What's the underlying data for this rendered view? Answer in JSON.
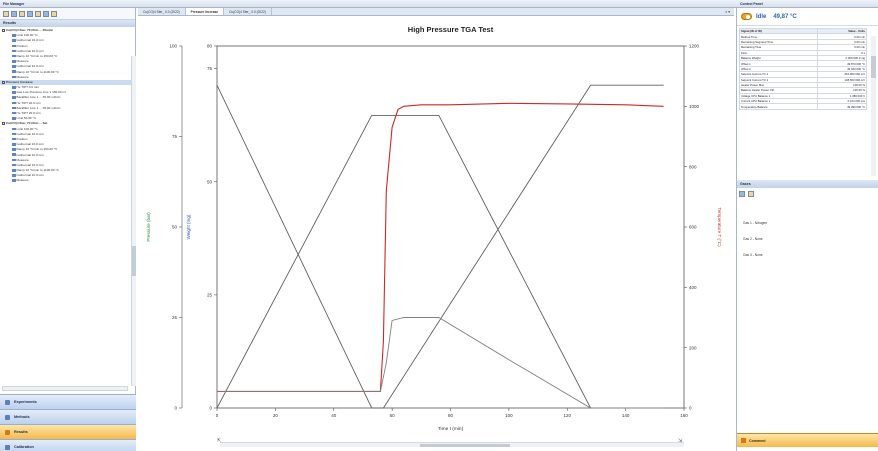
{
  "left_pane": {
    "title": "File Manager",
    "results_label": "Results",
    "tree": [
      {
        "label": "Cu(CO)4 Ster. 70 Ohm ... 35mmc",
        "group": true
      },
      {
        "label": "Limit 100.00 °C",
        "group": false
      },
      {
        "label": "Isothermal 10.0 min",
        "group": false
      },
      {
        "label": "Position",
        "group": false
      },
      {
        "label": "Isothermal 10.0 min",
        "group": false
      },
      {
        "label": "Ramp 10 °C/min to 150.00 °C",
        "group": false
      },
      {
        "label": "Measure",
        "group": false
      },
      {
        "label": "Isothermal 10.0 min",
        "group": false
      },
      {
        "label": "Ramp 10 °C/min to 1100.00 °C",
        "group": false
      },
      {
        "label": "Measure",
        "group": false
      },
      {
        "label": "Pressure Increase",
        "group": true,
        "selected": true
      },
      {
        "label": "He TIPT 0.0 min",
        "group": false
      },
      {
        "label": "Gas Low Pressure Line 1 150.00 ml",
        "group": false
      },
      {
        "label": "Backfiller Line 1 ... 35.00 ml/min",
        "group": false
      },
      {
        "label": "He TIPT 20.0 min",
        "group": false
      },
      {
        "label": "Backfiller Line 1 ... 35.00 ml/min",
        "group": false
      },
      {
        "label": "He TIPT 20.0 min",
        "group": false
      },
      {
        "label": "Limit 50.00 °C",
        "group": false
      },
      {
        "label": "Cu(CO)4 Ster. 70 Ohm ... Set",
        "group": true
      },
      {
        "label": "Limit 100.00 °C",
        "group": false
      },
      {
        "label": "Isothermal 10.0 min",
        "group": false
      },
      {
        "label": "Position",
        "group": false
      },
      {
        "label": "Isothermal 10.0 min",
        "group": false
      },
      {
        "label": "Ramp 10 °C/min to 150.00 °C",
        "group": false
      },
      {
        "label": "Isothermal 10.0 min",
        "group": false
      },
      {
        "label": "Measure",
        "group": false
      },
      {
        "label": "Isothermal 10.0 min",
        "group": false
      },
      {
        "label": "Ramp 10 °C/min to 1100.00 °C",
        "group": false
      },
      {
        "label": "Isothermal 10.0 min",
        "group": false
      },
      {
        "label": "Measure",
        "group": false
      }
    ],
    "nav_buttons": [
      {
        "label": "Experiments",
        "active": false
      },
      {
        "label": "Methods",
        "active": false
      },
      {
        "label": "Results",
        "active": true
      },
      {
        "label": "Calibration",
        "active": false
      }
    ]
  },
  "tabs": [
    {
      "label": "Cu(CO)4 Ster_ 0.0 (2022)",
      "active": false
    },
    {
      "label": "Pressure Increase",
      "active": true
    },
    {
      "label": "Cu(CO)4 Ster_ 0.0 (2022)",
      "active": false
    }
  ],
  "chart_data": {
    "type": "line",
    "title": "High Pressure TGA Test",
    "xlabel": "Time t (min)",
    "ylabels": {
      "pressure": "Pressure (bar)",
      "weight": "Weight (mg)",
      "temperature": "Temperature T (°C)"
    },
    "x_ticks": [
      0,
      20,
      40,
      60,
      80,
      100,
      120,
      140,
      160
    ],
    "xlim": [
      0,
      160
    ],
    "axes": {
      "pressure": {
        "ticks": [
          0,
          25,
          50,
          75,
          100
        ],
        "lim": [
          0,
          100
        ]
      },
      "weight": {
        "ticks": [
          0,
          25,
          50,
          75,
          80
        ],
        "lim": [
          0,
          80
        ]
      },
      "temperature": {
        "ticks": [
          0,
          200,
          400,
          600,
          800,
          1000,
          1200
        ],
        "lim": [
          0,
          1200
        ]
      }
    },
    "series": [
      {
        "axis": "temperature",
        "color": "#606060",
        "x": [
          0,
          53,
          57,
          128,
          153
        ],
        "y": [
          1070,
          0,
          0,
          1070,
          1070
        ]
      },
      {
        "axis": "temperature",
        "color": "#606060",
        "x": [
          0,
          53,
          76,
          128,
          153
        ],
        "y": [
          0,
          970,
          970,
          0,
          0
        ]
      },
      {
        "axis": "temperature",
        "color": "#cc2a24",
        "x": [
          0,
          56,
          57,
          58,
          60,
          62,
          64,
          70,
          80,
          100,
          120,
          140,
          153
        ],
        "y": [
          55,
          55,
          220,
          720,
          930,
          990,
          1000,
          1005,
          1005,
          1010,
          1008,
          1005,
          1000
        ]
      },
      {
        "axis": "temperature",
        "color": "#808080",
        "x": [
          0,
          56,
          58,
          60,
          64,
          75,
          76,
          100,
          128,
          153
        ],
        "y": [
          55,
          55,
          150,
          290,
          300,
          300,
          300,
          160,
          0,
          0
        ]
      }
    ]
  },
  "right_pane": {
    "title": "Control Panel",
    "status": "Idle",
    "temperature": "49,87 °C",
    "properties": [
      {
        "name": "Signal (ID of ID)",
        "value": "Value - Units",
        "head": true
      },
      {
        "name": "Method Time",
        "value": "0.00 min"
      },
      {
        "name": "Remaining Segment Time",
        "value": "0.00 min"
      },
      {
        "name": "Remaining Time",
        "value": "0.00 min"
      },
      {
        "name": "Flow",
        "value": "0 s"
      },
      {
        "name": "Balance Weight",
        "value": "0.000 000 0 mg"
      },
      {
        "name": "Offset 1",
        "value": "49.870 000 °C"
      },
      {
        "name": "Offset 2",
        "value": "49.940 000 °C"
      },
      {
        "name": "Setpoint Current TC 1",
        "value": "261.900 000 mV"
      },
      {
        "name": "Setpoint Current TC 2",
        "value": "138.500 000 mV"
      },
      {
        "name": "Heater Power Max.",
        "value": "100.00 %"
      },
      {
        "name": "Balance Heater Power Ctrl.",
        "value": "100.00 %"
      },
      {
        "name": "Voltage CPU Balance 1",
        "value": "1.080 000 V"
      },
      {
        "name": "Current CPU Balance 1",
        "value": "0.104 000 mA"
      },
      {
        "name": "Temperature Balance",
        "value": "49.390 000 °C"
      }
    ],
    "gas_title": "Gases",
    "gases": [
      "Gas 1 - Nitrogen",
      "Gas 2 - None",
      "Gas 3 - None"
    ],
    "bottom_button": "Comment"
  }
}
